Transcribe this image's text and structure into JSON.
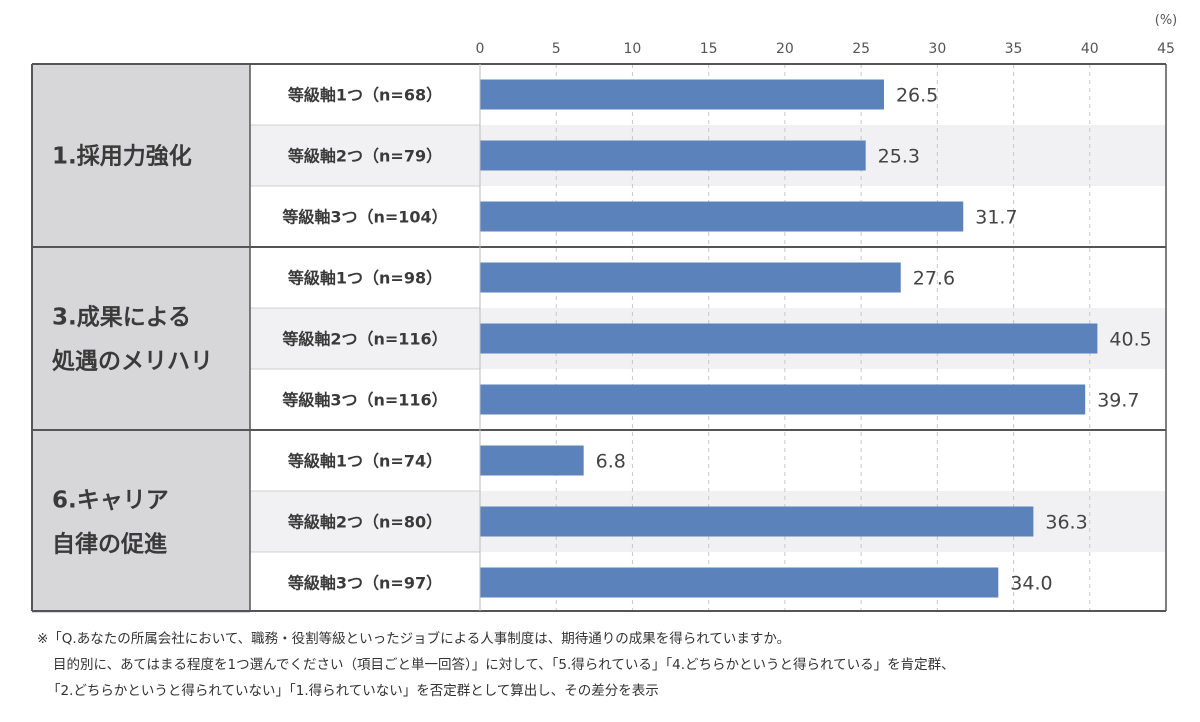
{
  "chart_data": {
    "type": "bar",
    "orientation": "horizontal",
    "unit_label": "(%)",
    "xlim": [
      0,
      45
    ],
    "x_ticks": [
      0,
      5,
      10,
      15,
      20,
      25,
      30,
      35,
      40,
      45
    ],
    "grid": "vertical dashed",
    "bar_color": "#5b82ba",
    "groups": [
      {
        "label_lines": [
          "1.採用力強化"
        ],
        "rows": [
          {
            "label": "等級軸1つ（n=68）",
            "value": 26.5,
            "value_label": "26.5"
          },
          {
            "label": "等級軸2つ（n=79）",
            "value": 25.3,
            "value_label": "25.3"
          },
          {
            "label": "等級軸3つ（n=104）",
            "value": 31.7,
            "value_label": "31.7"
          }
        ]
      },
      {
        "label_lines": [
          "3.成果による",
          "処遇のメリハリ"
        ],
        "rows": [
          {
            "label": "等級軸1つ（n=98）",
            "value": 27.6,
            "value_label": "27.6"
          },
          {
            "label": "等級軸2つ（n=116）",
            "value": 40.5,
            "value_label": "40.5"
          },
          {
            "label": "等級軸3つ（n=116）",
            "value": 39.7,
            "value_label": "39.7"
          }
        ]
      },
      {
        "label_lines": [
          "6.キャリア",
          "自律の促進"
        ],
        "rows": [
          {
            "label": "等級軸1つ（n=74）",
            "value": 6.8,
            "value_label": "6.8"
          },
          {
            "label": "等級軸2つ（n=80）",
            "value": 36.3,
            "value_label": "36.3"
          },
          {
            "label": "等級軸3つ（n=97）",
            "value": 34.0,
            "value_label": "34.0"
          }
        ]
      }
    ]
  },
  "footnote": {
    "lines": [
      "※「Q.あなたの所属会社において、職務・役割等級といったジョブによる人事制度は、期待通りの成果を得られていますか。",
      "目的別に、あてはまる程度を1つ選んでください（項目ごと単一回答）」に対して、「5.得られている」「4.どちらかというと得られている」を肯定群、",
      "「2.どちらかというと得られていない」「1.得られていない」を否定群として算出し、その差分を表示"
    ]
  }
}
